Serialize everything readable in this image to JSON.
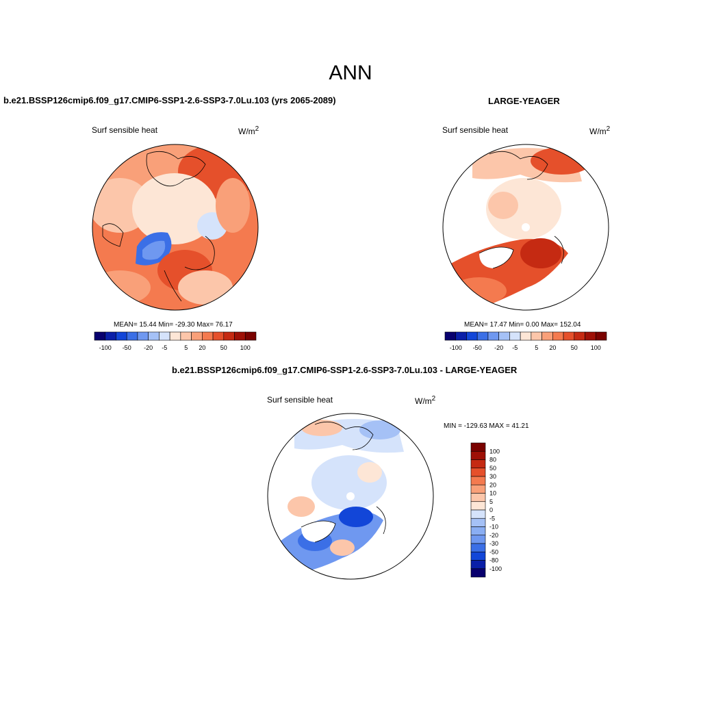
{
  "main_title": "ANN",
  "panels": [
    {
      "title": "b.e21.BSSP126cmip6.f09_g17.CMIP6-SSP1-2.6-SSP3-7.0Lu.103 (yrs 2065-2089)",
      "variable": "Surf sensible heat",
      "units": "W/m",
      "units_sup": "2",
      "stats": "MEAN=  15.44  Min= -29.30  Max=  76.17"
    },
    {
      "title": "LARGE-YEAGER",
      "variable": "Surf sensible heat",
      "units": "W/m",
      "units_sup": "2",
      "stats": "MEAN=  17.47  Min=   0.00  Max= 152.04"
    },
    {
      "title": "b.e21.BSSP126cmip6.f09_g17.CMIP6-SSP1-2.6-SSP3-7.0Lu.103 - LARGE-YEAGER",
      "variable": "Surf sensible heat",
      "units": "W/m",
      "units_sup": "2",
      "stats": "MIN = -129.63 MAX =  41.21"
    }
  ],
  "horizontal_colorbar": {
    "colors": [
      "#08006e",
      "#0a1fa8",
      "#1246d8",
      "#3b6fe6",
      "#6f98f0",
      "#a5c1f6",
      "#d5e3fb",
      "#fde6d6",
      "#fcc6aa",
      "#f9a079",
      "#f47a4f",
      "#e5502b",
      "#c52a12",
      "#9e1006",
      "#7a0200"
    ],
    "tick_labels": [
      "-100",
      "-50",
      "-20",
      "-5",
      "5",
      "20",
      "50",
      "100"
    ]
  },
  "vertical_colorbar": {
    "colors": [
      "#7a0200",
      "#9e1006",
      "#c52a12",
      "#e5502b",
      "#f47a4f",
      "#f9a079",
      "#fcc6aa",
      "#fde6d6",
      "#d5e3fb",
      "#a5c1f6",
      "#8aaef3",
      "#6f98f0",
      "#3b6fe6",
      "#1246d8",
      "#0a1fa8",
      "#08006e"
    ],
    "tick_labels": [
      "100",
      "80",
      "50",
      "30",
      "20",
      "10",
      "5",
      "0",
      "-5",
      "-10",
      "-20",
      "-30",
      "-50",
      "-80",
      "-100"
    ]
  }
}
